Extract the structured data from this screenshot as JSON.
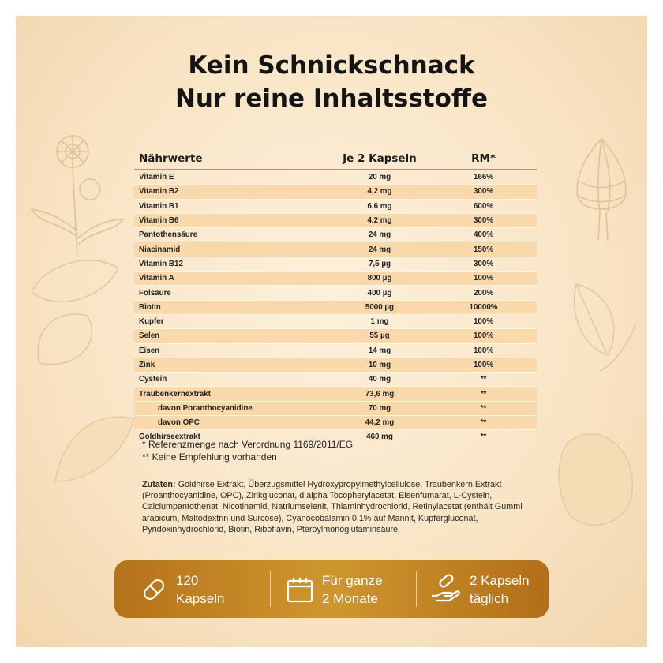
{
  "title": {
    "line1": "Kein Schnickschnack",
    "line2": "Nur reine Inhaltsstoffe"
  },
  "table": {
    "headers": [
      "Nährwerte",
      "Je 2 Kapseln",
      "RM*"
    ],
    "rows": [
      {
        "name": "Vitamin E",
        "amount": "20 mg",
        "rm": "166%"
      },
      {
        "name": "Vitamin B2",
        "amount": "4,2 mg",
        "rm": "300%"
      },
      {
        "name": "Vitamin B1",
        "amount": "6,6 mg",
        "rm": "600%"
      },
      {
        "name": "Vitamin B6",
        "amount": "4,2 mg",
        "rm": "300%"
      },
      {
        "name": "Pantothensäure",
        "amount": "24 mg",
        "rm": "400%"
      },
      {
        "name": "Niacinamid",
        "amount": "24 mg",
        "rm": "150%"
      },
      {
        "name": "Vitamin B12",
        "amount": "7,5 µg",
        "rm": "300%"
      },
      {
        "name": "Vitamin A",
        "amount": "800 µg",
        "rm": "100%"
      },
      {
        "name": "Folsäure",
        "amount": "400 µg",
        "rm": "200%"
      },
      {
        "name": "Biotin",
        "amount": "5000 µg",
        "rm": "10000%"
      },
      {
        "name": "Kupfer",
        "amount": "1 mg",
        "rm": "100%"
      },
      {
        "name": "Selen",
        "amount": "55 µg",
        "rm": "100%"
      },
      {
        "name": "Eisen",
        "amount": "14 mg",
        "rm": "100%"
      },
      {
        "name": "Zink",
        "amount": "10 mg",
        "rm": "100%"
      },
      {
        "name": "Cystein",
        "amount": "40 mg",
        "rm": "**"
      },
      {
        "name": "Traubenkernextrakt",
        "amount": "73,6 mg",
        "rm": "**"
      },
      {
        "name": "davon Poranthocyanidine",
        "amount": "70 mg",
        "rm": "**"
      },
      {
        "name": "davon OPC",
        "amount": "44,2 mg",
        "rm": "**"
      },
      {
        "name": "Goldhirseextrakt",
        "amount": "460 mg",
        "rm": "**"
      }
    ]
  },
  "footnotes": [
    "* Referenzmenge nach Verordnung 1169/2011/EG",
    "** Keine Empfehlung vorhanden"
  ],
  "zutaten": {
    "label": "Zutaten:",
    "text": "Goldhirse Extrakt, Überzugsmittel Hydroxypropylmethylcellulose, Traubenkern Extrakt  (Proanthocyanidine, OPC), Zinkgluconat, d alpha Tocopherylacetat, Eisenfumarat, L-Cystein, Calciumpantothenat, Nicotinamid, Natriumselenit, Thiaminhydrochlorid, Retinylacetat (enthält Gummi arabicum, Maltodextrin und Surcose), Cyanocobalamin 0,1% auf Mannit,  Kupfergluconat, Pyridoxinhydrochlorid, Biotin, Riboflavin, Pteroylmonoglutaminsäure."
  },
  "features": [
    {
      "icon": "capsule-icon",
      "line1": "120",
      "line2": "Kapseln"
    },
    {
      "icon": "calendar-icon",
      "line1": "Für ganze",
      "line2": "2 Monate"
    },
    {
      "icon": "hand-capsule-icon",
      "line1": "2 Kapseln",
      "line2": "täglich"
    }
  ],
  "colors": {
    "accent": "#c99632",
    "row_alt": "#f9d9ac",
    "bar": "#c2862a"
  }
}
